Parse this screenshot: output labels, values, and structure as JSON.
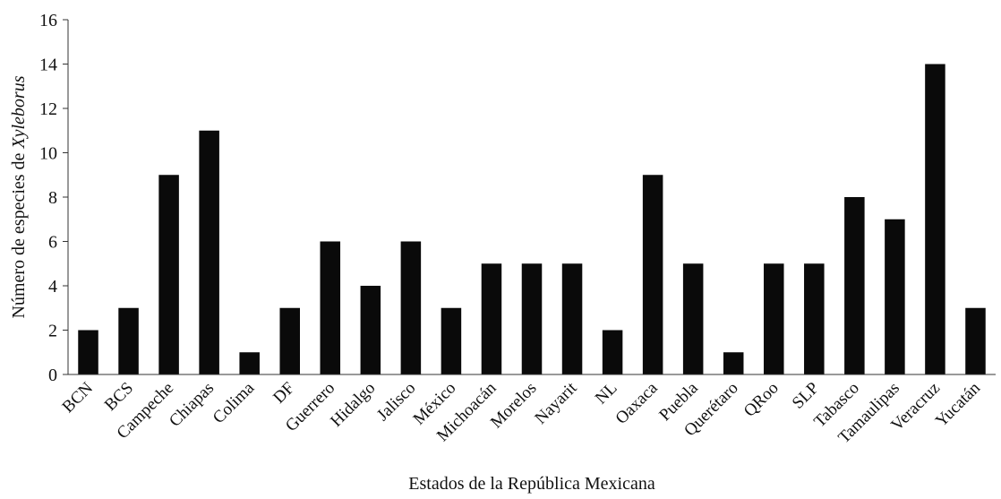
{
  "chart_data": {
    "type": "bar",
    "title": "",
    "xlabel": "Estados de la República Mexicana",
    "ylabel_prefix": "Número de especies de ",
    "ylabel_italic": "Xyleborus",
    "ylim": [
      0,
      16
    ],
    "yticks": [
      0,
      2,
      4,
      6,
      8,
      10,
      12,
      14,
      16
    ],
    "grid": false,
    "bar_color": "#0a0a0a",
    "categories": [
      "BCN",
      "BCS",
      "Campeche",
      "Chiapas",
      "Colima",
      "DF",
      "Guerrero",
      "Hidalgo",
      "Jalisco",
      "México",
      "Michoacán",
      "Morelos",
      "Nayarit",
      "NL",
      "Oaxaca",
      "Puebla",
      "Querétaro",
      "QRoo",
      "SLP",
      "Tabasco",
      "Tamaulipas",
      "Veracruz",
      "Yucatán"
    ],
    "values": [
      2,
      3,
      9,
      11,
      1,
      3,
      6,
      4,
      6,
      3,
      5,
      5,
      5,
      2,
      9,
      5,
      1,
      5,
      5,
      8,
      7,
      14,
      3
    ]
  }
}
